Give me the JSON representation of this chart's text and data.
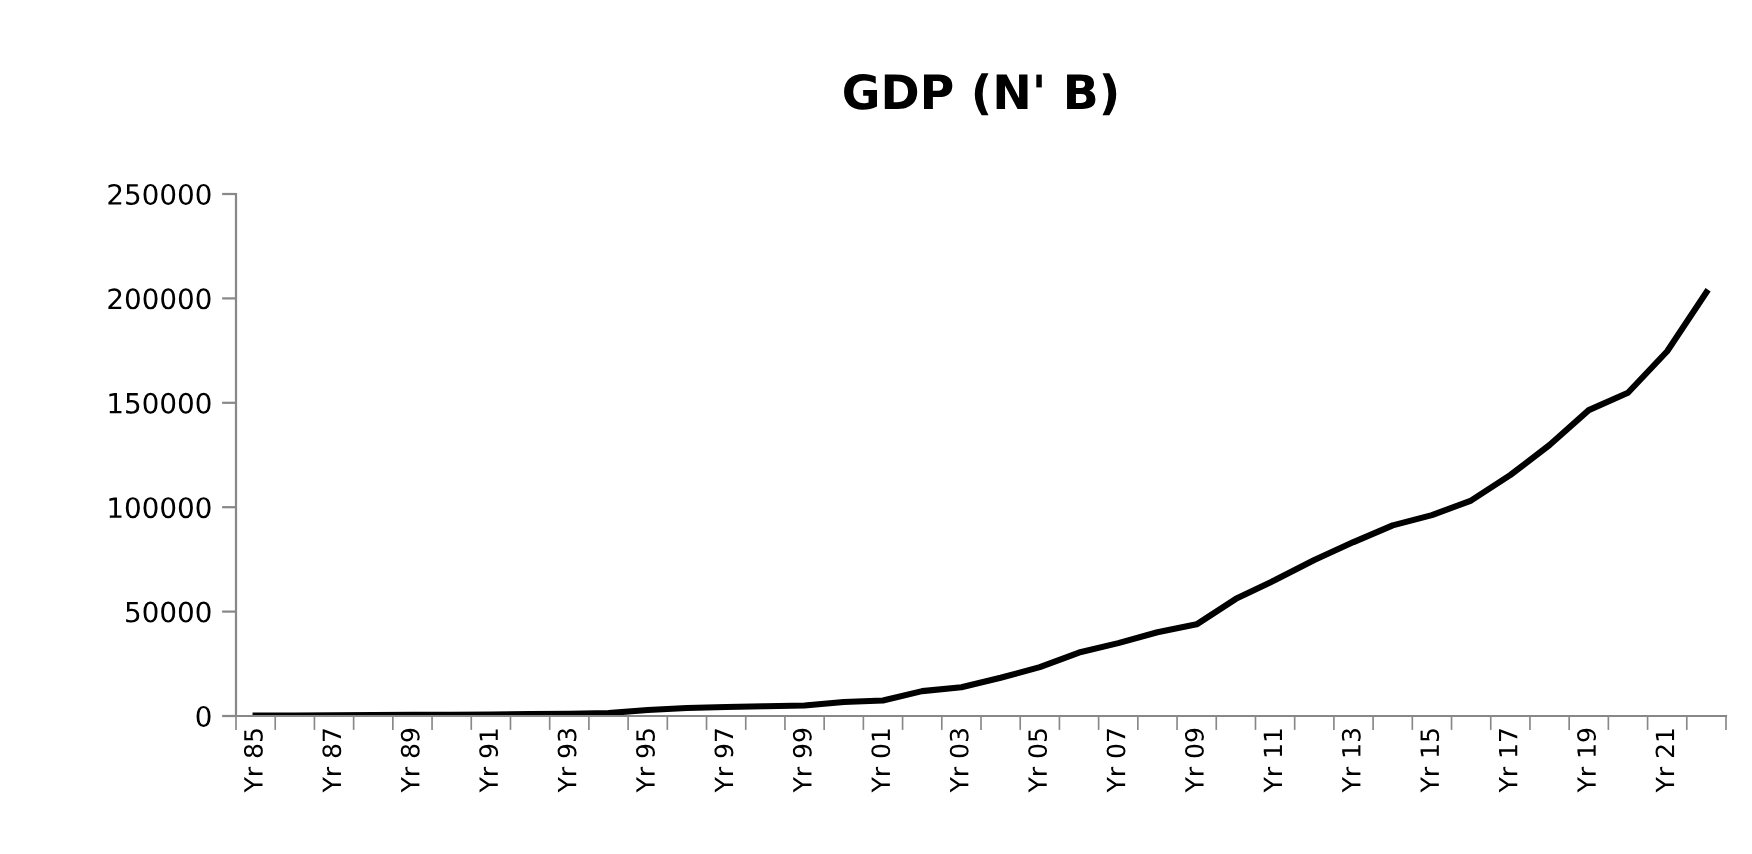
{
  "chart_data": {
    "type": "line",
    "title": "GDP (N' B)",
    "categories": [
      "Yr 85",
      null,
      "Yr 87",
      null,
      "Yr 89",
      null,
      "Yr 91",
      null,
      "Yr 93",
      null,
      "Yr 95",
      null,
      "Yr 97",
      null,
      "Yr 99",
      null,
      "Yr 01",
      null,
      "Yr 03",
      null,
      "Yr 05",
      null,
      "Yr 07",
      null,
      "Yr 09",
      null,
      "Yr 11",
      null,
      "Yr 13",
      null,
      "Yr 15",
      null,
      "Yr 17",
      null,
      "Yr 19",
      null,
      "Yr 21",
      null
    ],
    "series": [
      {
        "color": "#000000",
        "values": [
          200,
          250,
          300,
          400,
          550,
          600,
          700,
          900,
          1100,
          1400,
          2900,
          3800,
          4300,
          4700,
          5000,
          6700,
          7400,
          11900,
          13800,
          18300,
          23400,
          30400,
          34900,
          40100,
          43900,
          56100,
          65100,
          74700,
          83300,
          91300,
          96200,
          103200,
          115400,
          129800,
          146500,
          154800,
          174700,
          202900
        ]
      }
    ],
    "ylim": [
      0,
      250000
    ],
    "yticks": [
      0,
      50000,
      100000,
      150000,
      200000,
      250000
    ],
    "grid": false,
    "legend": false,
    "marker": "none",
    "line_style": "solid"
  }
}
